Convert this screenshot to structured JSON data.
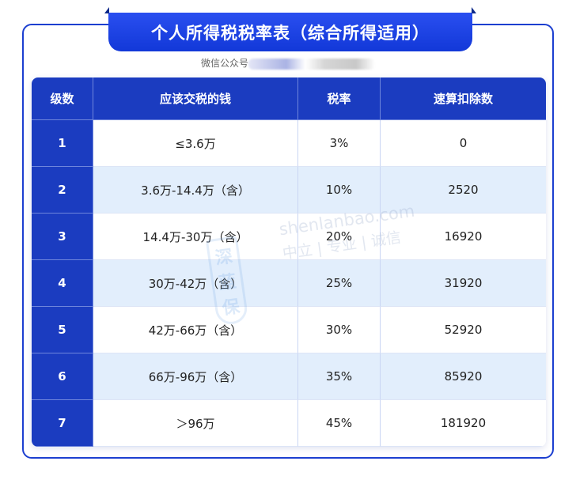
{
  "title": "个人所得税税率表（综合所得适用）",
  "subtitle": "微信公众号",
  "table": {
    "headers": [
      "级数",
      "应该交税的钱",
      "税率",
      "速算扣除数"
    ],
    "rows": [
      [
        "1",
        "≤3.6万",
        "3%",
        "0"
      ],
      [
        "2",
        "3.6万-14.4万（含）",
        "10%",
        "2520"
      ],
      [
        "3",
        "14.4万-30万（含）",
        "20%",
        "16920"
      ],
      [
        "4",
        "30万-42万（含）",
        "25%",
        "31920"
      ],
      [
        "5",
        "42万-66万（含）",
        "30%",
        "52920"
      ],
      [
        "6",
        "66万-96万（含）",
        "35%",
        "85920"
      ],
      [
        "7",
        "＞96万",
        "45%",
        "181920"
      ]
    ]
  },
  "watermark": {
    "logo": "深蓝保",
    "url": "shenlanbao.com",
    "motto": "中立 | 专业 | 诚信"
  },
  "colors": {
    "primary": "#1b3cc0",
    "alt_row": "#e2eefc",
    "frame": "#1c3fd0"
  }
}
